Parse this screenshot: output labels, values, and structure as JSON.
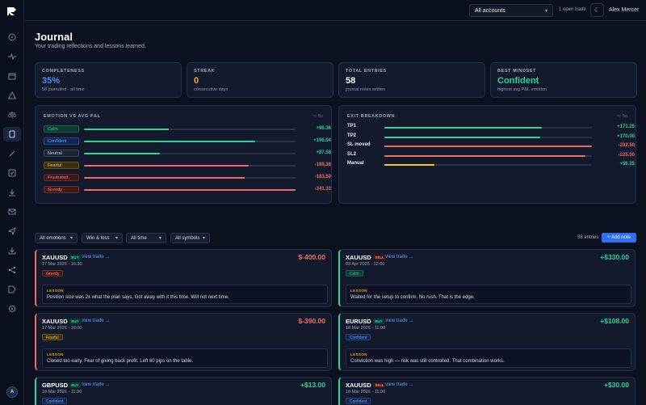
{
  "topbar": {
    "account_select": "All accounts",
    "open_trade": "1 open trade",
    "user_name": "Alex Mercer"
  },
  "sidebar": {
    "avatar_initial": "A",
    "items": [
      "dashboard-icon",
      "activity-icon",
      "calendar-icon",
      "alert-icon",
      "scale-icon",
      "journal-icon",
      "pen-icon",
      "check-icon",
      "download-icon",
      "mail-icon",
      "send-icon",
      "import-icon",
      "share-icon",
      "tag-icon",
      "settings-icon"
    ]
  },
  "page": {
    "title": "Journal",
    "subtitle": "Your trading reflections and lessons learned."
  },
  "stats": [
    {
      "label": "COMPLETENESS",
      "value": "35%",
      "note": "58 journaled · all time",
      "color": "#4d8dff"
    },
    {
      "label": "STREAK",
      "value": "0",
      "note": "consecutive days",
      "color": "#f0a733"
    },
    {
      "label": "TOTAL ENTRIES",
      "value": "58",
      "note": "journal notes written",
      "color": "#ffffff"
    },
    {
      "label": "BEST MINDSET",
      "value": "Confident",
      "note": "highest avg P&L emotion",
      "color": "#2ed3a0"
    }
  ],
  "emotion_panel": {
    "title": "EMOTION VS AVG P&L",
    "hint": "⌥ flip",
    "rows": [
      {
        "label": "Calm",
        "value": "+96.36",
        "fill": 0.4,
        "tone": "pos"
      },
      {
        "label": "Confident",
        "value": "+196.04",
        "fill": 0.81,
        "tone": "pos"
      },
      {
        "label": "Neutral",
        "value": "+87.58",
        "fill": 0.36,
        "tone": "pos"
      },
      {
        "label": "Fearful",
        "value": "-189.38",
        "fill": 0.78,
        "tone": "neg"
      },
      {
        "label": "Frustrated",
        "value": "-183.50",
        "fill": 0.76,
        "tone": "neg"
      },
      {
        "label": "Greedy",
        "value": "-241.33",
        "fill": 1.0,
        "tone": "neg"
      }
    ]
  },
  "exit_panel": {
    "title": "EXIT BREAKDOWN",
    "hint": "⌥ flip",
    "rows": [
      {
        "label": "TP1",
        "value": "+171.25",
        "fill": 0.76,
        "tone": "pos"
      },
      {
        "label": "TP2",
        "value": "+170.00",
        "fill": 0.75,
        "tone": "pos"
      },
      {
        "label": "SL moved",
        "value": "-232.50",
        "fill": 1.0,
        "tone": "neg"
      },
      {
        "label": "SL2",
        "value": "-225.00",
        "fill": 0.97,
        "tone": "neg"
      },
      {
        "label": "Manual",
        "value": "+56.25",
        "fill": 0.24,
        "tone": "gold"
      }
    ]
  },
  "filters": {
    "emotions": "All emotions",
    "outcome": "Win & loss",
    "time": "All time",
    "symbols": "All symbols",
    "entries_count": "58 entries",
    "add_note": "+ Add note"
  },
  "entries": [
    {
      "symbol": "XAUUSD",
      "side": "BUY",
      "date": "17 Mar 2026 · 16:30",
      "pnl": "$-400.00",
      "emotion": "Greedy",
      "lesson_label": "LESSON",
      "lesson": "Position size was 2x what the plan says. Got away with it this time. Will not next time.",
      "tone": "neg",
      "view_label": "view trade →"
    },
    {
      "symbol": "XAUUSD",
      "side": "SELL",
      "date": "03 Apr 2026 · 12:00",
      "pnl": "+$330.00",
      "emotion": "Calm",
      "lesson_label": "LESSON",
      "lesson": "Waited for the setup to confirm. No rush. That is the edge.",
      "tone": "pos",
      "view_label": "view trade →"
    },
    {
      "symbol": "XAUUSD",
      "side": "BUY",
      "date": "17 Mar 2026 · 18:00",
      "pnl": "$-390.00",
      "emotion": "Fearful",
      "lesson_label": "LESSON",
      "lesson": "Closed too early. Fear of giving back profit. Left 60 pips on the table.",
      "tone": "neg",
      "view_label": "view trade →"
    },
    {
      "symbol": "EURUSD",
      "side": "BUY",
      "date": "18 Mar 2026 · 11:00",
      "pnl": "+$108.00",
      "emotion": "Confident",
      "lesson_label": "LESSON",
      "lesson": "Conviction was high — risk was still controlled. That combination works.",
      "tone": "pos",
      "view_label": "view trade →"
    },
    {
      "symbol": "GBPUSD",
      "side": "BUY",
      "date": "18 Mar 2026 · 11:00",
      "pnl": "+$13.00",
      "emotion": "Confident",
      "lesson_label": "",
      "lesson": "",
      "tone": "pos",
      "view_label": "view trade →"
    },
    {
      "symbol": "XAUUSD",
      "side": "SELL",
      "date": "18 Mar 2026 · 11:00",
      "pnl": "+$30.00",
      "emotion": "Confident",
      "lesson_label": "",
      "lesson": "",
      "tone": "pos",
      "view_label": "view trade →"
    }
  ],
  "colors": {
    "pos": "#2ed3a0",
    "neg": "#f06a6a",
    "gold": "#f5c518",
    "accent": "#2f6df6"
  }
}
